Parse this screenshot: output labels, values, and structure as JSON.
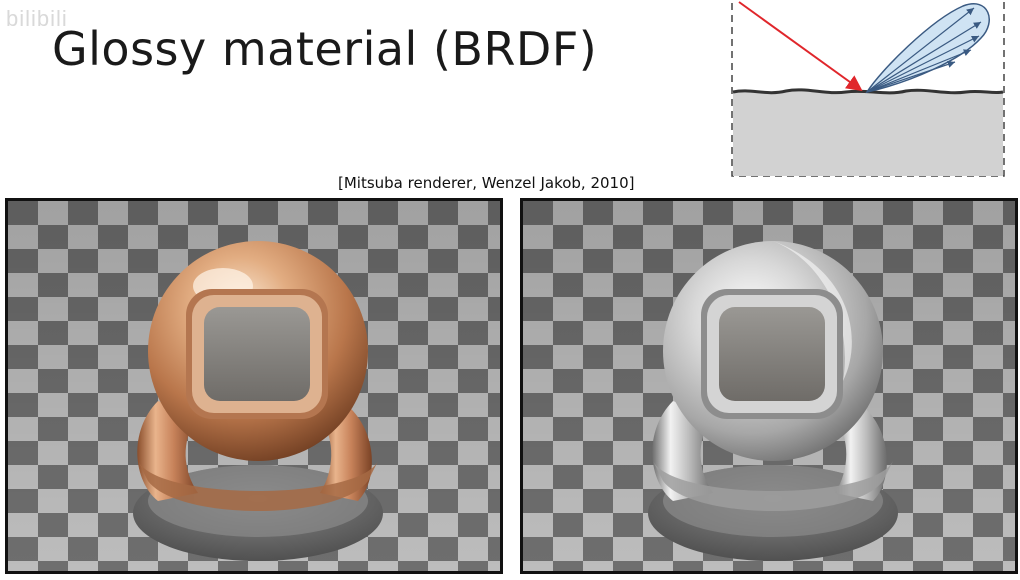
{
  "slide": {
    "watermark": "bilibili",
    "title": "Glossy material (BRDF)",
    "citation": "[Mitsuba renderer, Wenzel Jakob, 2010]"
  },
  "colors": {
    "incident_ray": "#e0262b",
    "lobe_fill": "#cfe3f3",
    "lobe_stroke": "#3a5a82",
    "surface": "#d2d2d2",
    "copper": "#d79a6a",
    "silver": "#d9d9d9",
    "checker_dark": "#6e6e6e",
    "checker_light": "#bdbdbd"
  },
  "renders": [
    {
      "material": "copper"
    },
    {
      "material": "silver"
    }
  ]
}
